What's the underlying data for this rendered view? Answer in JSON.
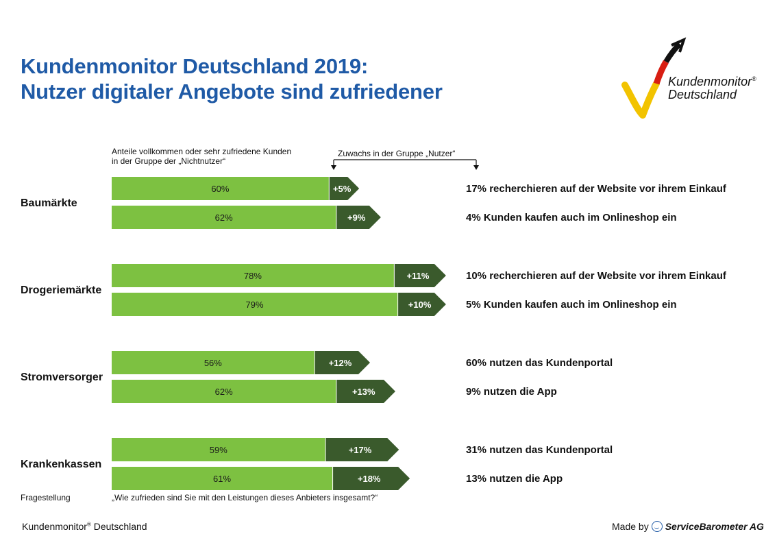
{
  "header": {
    "title_line1": "Kundenmonitor Deutschland 2019:",
    "title_line2": "Nutzer digitaler Angebote sind zufriedener"
  },
  "logo": {
    "line1": "Kundenmonitor",
    "line2": "Deutschland",
    "mark": "®"
  },
  "legend": {
    "base_label_line1": "Anteile vollkommen oder sehr zufriedene Kunden",
    "base_label_line2": "in der Gruppe der „Nichtnutzer“",
    "gain_label": "Zuwachs in der Gruppe „Nutzer“"
  },
  "colors": {
    "base": "#7dc141",
    "gain": "#3a5a2c",
    "title": "#1f5aa6"
  },
  "chart_data": {
    "type": "bar",
    "orientation": "horizontal",
    "stacked": true,
    "xlim": [
      0,
      100
    ],
    "series_names": [
      "Nichtnutzer",
      "Zuwachs Nutzer"
    ],
    "groups": [
      {
        "name": "Baumärkte",
        "rows": [
          {
            "base": 60,
            "base_label": "60%",
            "gain": 5,
            "gain_label": "+5%",
            "note": "17% recherchieren auf der Website vor ihrem Einkauf"
          },
          {
            "base": 62,
            "base_label": "62%",
            "gain": 9,
            "gain_label": "+9%",
            "note": "4% Kunden kaufen auch im Onlineshop ein"
          }
        ]
      },
      {
        "name": "Drogeriemärkte",
        "rows": [
          {
            "base": 78,
            "base_label": "78%",
            "gain": 11,
            "gain_label": "+11%",
            "note": "10% recherchieren auf der Website vor ihrem Einkauf"
          },
          {
            "base": 79,
            "base_label": "79%",
            "gain": 10,
            "gain_label": "+10%",
            "note": "5% Kunden kaufen auch im Onlineshop ein"
          }
        ]
      },
      {
        "name": "Stromversorger",
        "rows": [
          {
            "base": 56,
            "base_label": "56%",
            "gain": 12,
            "gain_label": "+12%",
            "note": "60% nutzen das Kundenportal"
          },
          {
            "base": 62,
            "base_label": "62%",
            "gain": 13,
            "gain_label": "+13%",
            "note": "9% nutzen die App"
          }
        ]
      },
      {
        "name": "Krankenkassen",
        "rows": [
          {
            "base": 59,
            "base_label": "59%",
            "gain": 17,
            "gain_label": "+17%",
            "note": "31% nutzen das Kundenportal"
          },
          {
            "base": 61,
            "base_label": "61%",
            "gain": 18,
            "gain_label": "+18%",
            "note": "13% nutzen die App"
          }
        ]
      }
    ]
  },
  "question": {
    "label": "Fragestellung",
    "text": "„Wie zufrieden sind Sie mit den Leistungen dieses Anbieters insgesamt?“"
  },
  "footer": {
    "left_brand": "Kundenmonitor",
    "left_mark": "®",
    "left_rest": "Deutschland",
    "made_by": "Made by",
    "company": "ServiceBarometer AG"
  }
}
